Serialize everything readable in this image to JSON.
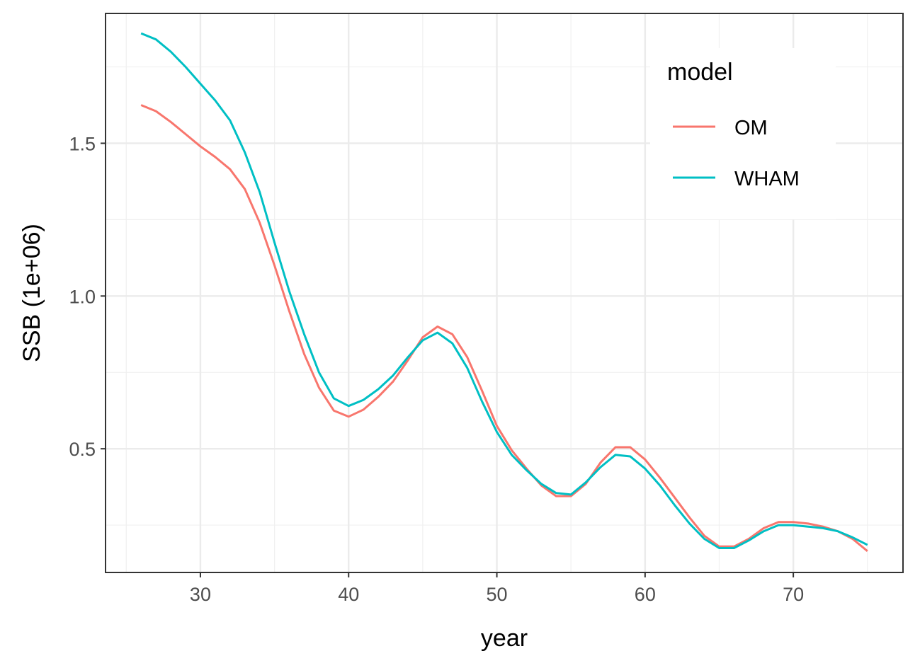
{
  "chart_data": {
    "type": "line",
    "xlabel": "year",
    "ylabel": "SSB (1e+06)",
    "xlim": [
      23.6,
      77.4
    ],
    "ylim": [
      0.095,
      1.925
    ],
    "x_ticks": [
      30,
      40,
      50,
      60,
      70
    ],
    "x_tick_labels": [
      "30",
      "40",
      "50",
      "60",
      "70"
    ],
    "y_ticks": [
      0.5,
      1.0,
      1.5
    ],
    "y_tick_labels": [
      "0.5",
      "1.0",
      "1.5"
    ],
    "grid": true,
    "legend": {
      "title": "model",
      "placement": "top-right"
    },
    "x": [
      26,
      27,
      28,
      29,
      30,
      31,
      32,
      33,
      34,
      35,
      36,
      37,
      38,
      39,
      40,
      41,
      42,
      43,
      44,
      45,
      46,
      47,
      48,
      49,
      50,
      51,
      52,
      53,
      54,
      55,
      56,
      57,
      58,
      59,
      60,
      61,
      62,
      63,
      64,
      65,
      66,
      67,
      68,
      69,
      70,
      71,
      72,
      73,
      74,
      75
    ],
    "series": [
      {
        "name": "OM",
        "color": "#F8766D",
        "values": [
          1.625,
          1.605,
          1.57,
          1.53,
          1.49,
          1.455,
          1.415,
          1.35,
          1.24,
          1.1,
          0.95,
          0.81,
          0.7,
          0.625,
          0.605,
          0.628,
          0.67,
          0.72,
          0.79,
          0.865,
          0.9,
          0.875,
          0.8,
          0.69,
          0.575,
          0.495,
          0.435,
          0.38,
          0.345,
          0.345,
          0.385,
          0.455,
          0.505,
          0.505,
          0.465,
          0.405,
          0.34,
          0.275,
          0.215,
          0.18,
          0.18,
          0.205,
          0.24,
          0.26,
          0.26,
          0.255,
          0.245,
          0.23,
          0.205,
          0.165
        ]
      },
      {
        "name": "WHAM",
        "color": "#00BFC4",
        "values": [
          1.86,
          1.84,
          1.8,
          1.75,
          1.695,
          1.64,
          1.575,
          1.47,
          1.34,
          1.175,
          1.015,
          0.875,
          0.75,
          0.665,
          0.64,
          0.66,
          0.695,
          0.74,
          0.8,
          0.855,
          0.88,
          0.845,
          0.765,
          0.655,
          0.555,
          0.48,
          0.43,
          0.385,
          0.355,
          0.35,
          0.39,
          0.44,
          0.48,
          0.475,
          0.435,
          0.38,
          0.315,
          0.255,
          0.205,
          0.175,
          0.175,
          0.2,
          0.23,
          0.25,
          0.25,
          0.245,
          0.24,
          0.23,
          0.21,
          0.185
        ]
      }
    ]
  }
}
